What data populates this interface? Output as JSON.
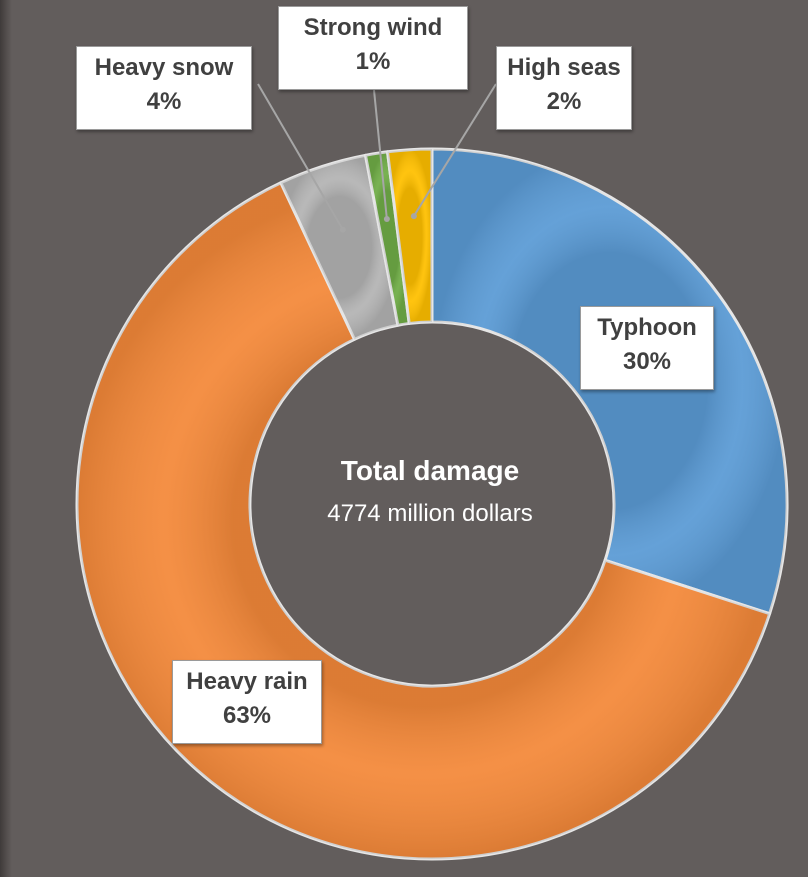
{
  "chart_data": {
    "type": "pie",
    "variant": "doughnut",
    "center_text": {
      "title": "Total damage",
      "value": "4774 million dollars"
    },
    "slices": [
      {
        "name": "Typhoon",
        "value": 30,
        "label": "30%",
        "color": "#5b9bd5"
      },
      {
        "name": "Heavy rain",
        "value": 63,
        "label": "63%",
        "color": "#f4893a"
      },
      {
        "name": "Heavy snow",
        "value": 4,
        "label": "4%",
        "color": "#b4b4b4"
      },
      {
        "name": "Strong wind",
        "value": 1,
        "label": "1%",
        "color": "#70ad47"
      },
      {
        "name": "High seas",
        "value": 2,
        "label": "2%",
        "color": "#ffc000"
      }
    ],
    "value_unit": "percent of total damage",
    "legend": "none"
  }
}
